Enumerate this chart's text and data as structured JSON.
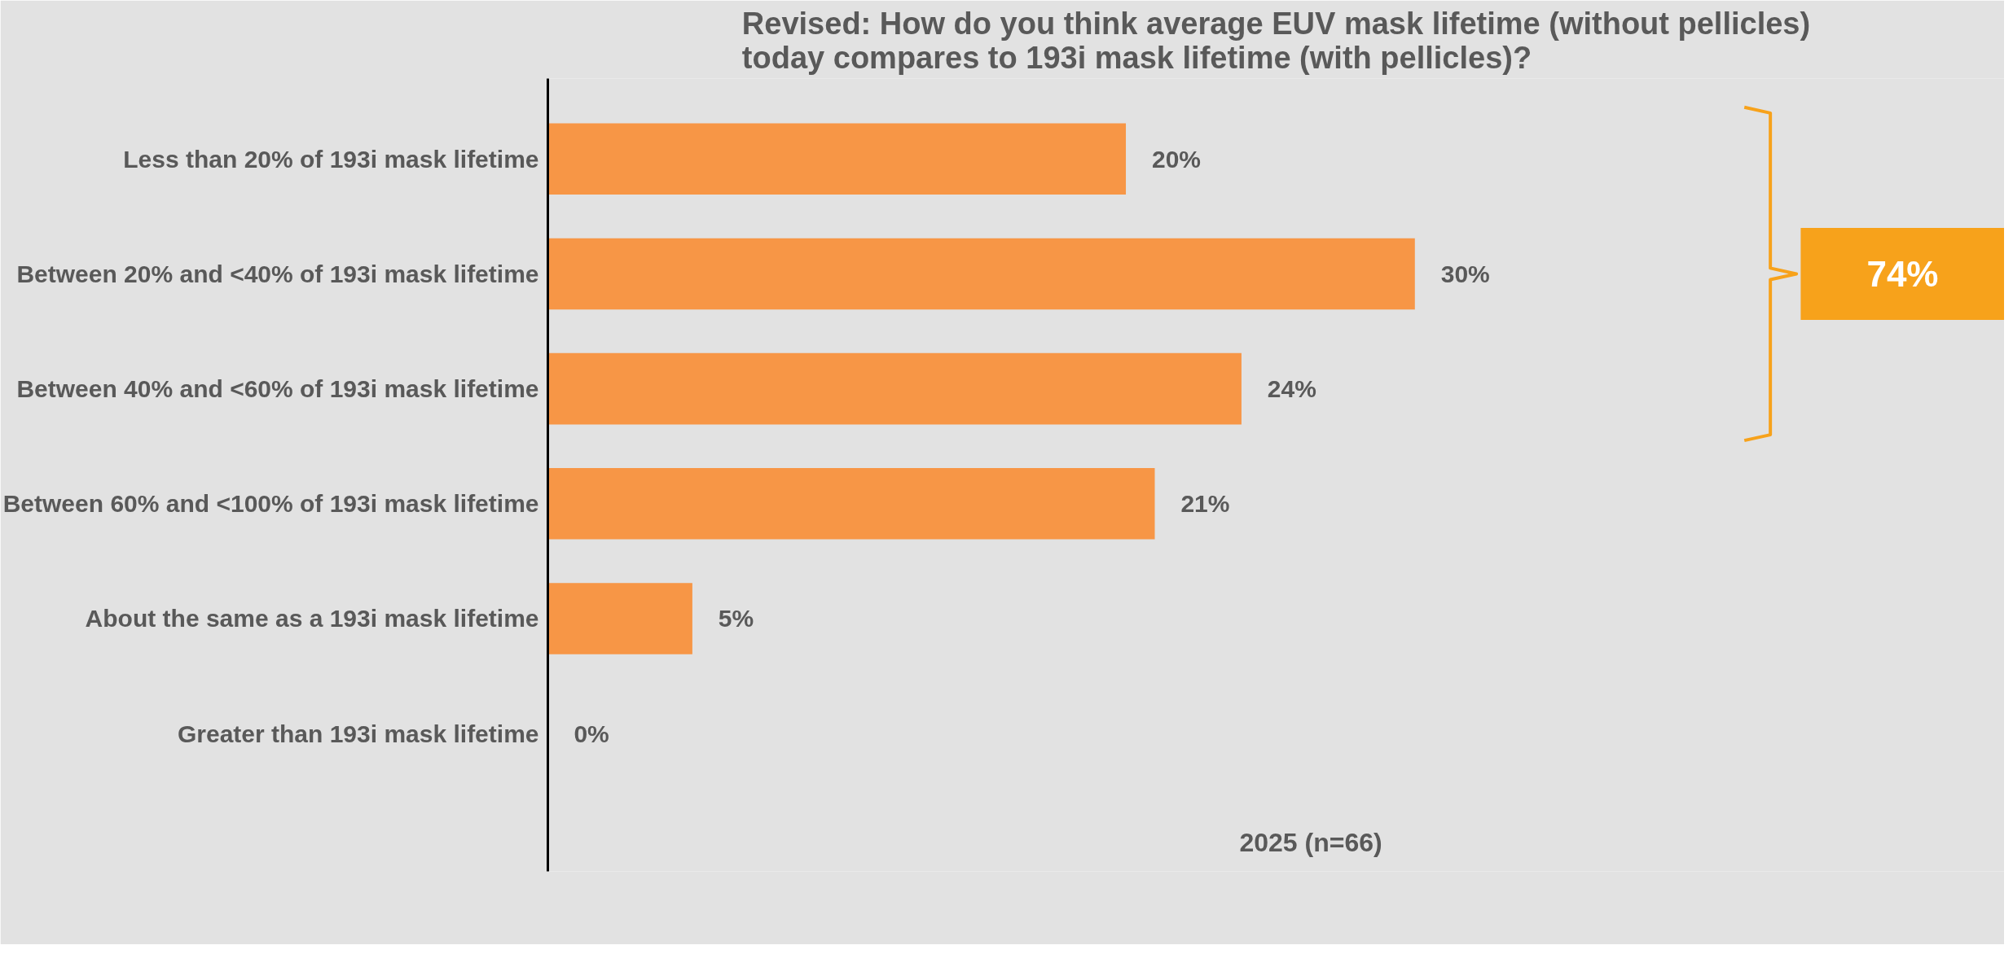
{
  "chart_data": {
    "type": "bar",
    "orientation": "horizontal",
    "title": "Revised: How do you think average EUV mask lifetime (without pellicles)\ntoday compares to 193i mask lifetime (with pellicles)?",
    "categories": [
      "Less than 20% of 193i mask lifetime",
      "Between 20% and <40% of 193i mask lifetime",
      "Between 40% and <60% of 193i mask lifetime",
      "Between 60% and <100% of 193i mask lifetime",
      "About the same as a 193i mask lifetime",
      "Greater than 193i mask lifetime"
    ],
    "values": [
      20,
      30,
      24,
      21,
      5,
      0
    ],
    "value_labels": [
      "20%",
      "30%",
      "24%",
      "21%",
      "5%",
      "0%"
    ],
    "color": "#f79646",
    "annotations": [
      "74%",
      "2025 (n=66)"
    ],
    "grid": false,
    "legend": false
  }
}
